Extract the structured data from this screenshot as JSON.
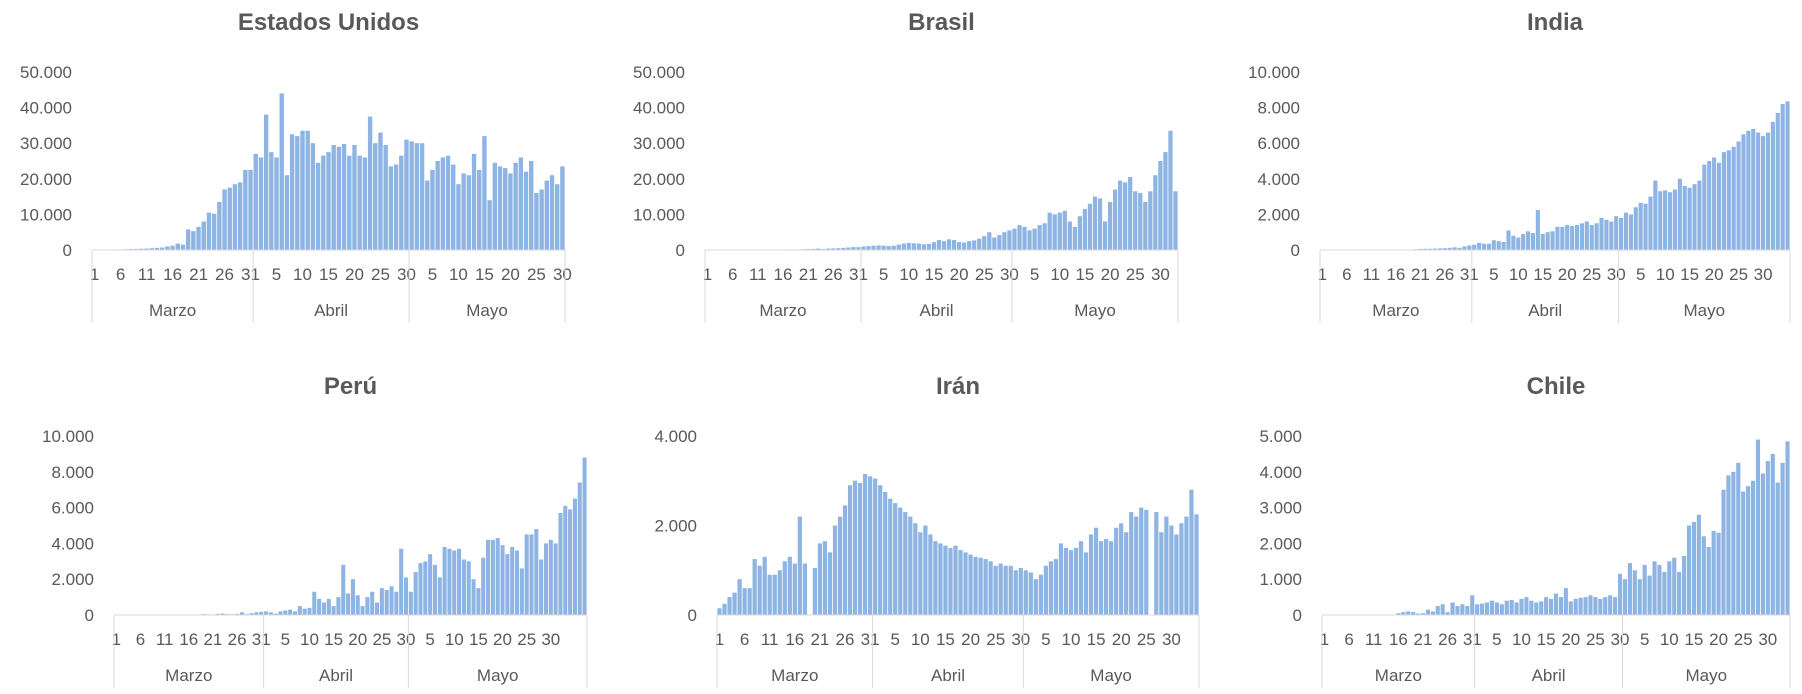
{
  "chart_data": [
    {
      "type": "bar",
      "title": "Estados Unidos",
      "ylim": [
        0,
        50000
      ],
      "y_ticks": [
        "0",
        "10.000",
        "20.000",
        "30.000",
        "40.000",
        "50.000"
      ],
      "x_tick_labels": [
        "1",
        "6",
        "11",
        "16",
        "21",
        "26",
        "31",
        "5",
        "10",
        "15",
        "20",
        "25",
        "30",
        "5",
        "10",
        "15",
        "20",
        "25",
        "30"
      ],
      "months": [
        "Marzo",
        "Abril",
        "Mayo"
      ],
      "month_days": [
        31,
        30,
        31
      ],
      "values": [
        20,
        40,
        60,
        80,
        100,
        150,
        200,
        250,
        300,
        350,
        400,
        500,
        600,
        700,
        1000,
        1200,
        1800,
        1500,
        5800,
        5300,
        6500,
        8000,
        10500,
        10200,
        13500,
        17000,
        17500,
        18500,
        19000,
        22500,
        22500,
        27000,
        26000,
        38000,
        27500,
        26000,
        44000,
        21000,
        32500,
        32000,
        33500,
        33500,
        30000,
        24500,
        26500,
        27500,
        29500,
        29000,
        29800,
        26500,
        29500,
        26500,
        26000,
        37500,
        30000,
        33000,
        29500,
        23500,
        24000,
        26500,
        31000,
        30500,
        30000,
        30000,
        19500,
        22500,
        25000,
        26000,
        26500,
        24000,
        18500,
        21500,
        21000,
        27000,
        22500,
        32000,
        14000,
        24500,
        23500,
        23000,
        21500,
        24500,
        26000,
        22000,
        25000,
        16000,
        17000,
        19500,
        21000,
        18500,
        23500
      ]
    },
    {
      "type": "bar",
      "title": "Brasil",
      "ylim": [
        0,
        50000
      ],
      "y_ticks": [
        "0",
        "10.000",
        "20.000",
        "30.000",
        "40.000",
        "50.000"
      ],
      "x_tick_labels": [
        "1",
        "6",
        "11",
        "16",
        "21",
        "26",
        "31",
        "5",
        "10",
        "15",
        "20",
        "25",
        "30",
        "5",
        "10",
        "15",
        "20",
        "25",
        "30"
      ],
      "months": [
        "Marzo",
        "Abril",
        "Mayo"
      ],
      "month_days": [
        31,
        30,
        31
      ],
      "values": [
        0,
        0,
        0,
        0,
        0,
        0,
        0,
        0,
        0,
        0,
        0,
        0,
        0,
        0,
        0,
        0,
        100,
        150,
        150,
        200,
        250,
        300,
        400,
        300,
        400,
        450,
        500,
        600,
        700,
        800,
        800,
        1000,
        1100,
        1200,
        1300,
        1200,
        1100,
        1200,
        1500,
        1800,
        2000,
        1900,
        1800,
        1600,
        1700,
        2200,
        2800,
        2500,
        3000,
        2800,
        2200,
        2100,
        2500,
        2700,
        3200,
        3900,
        5000,
        3500,
        4200,
        5000,
        5500,
        6000,
        7000,
        6500,
        5500,
        6000,
        7000,
        7500,
        10500,
        10000,
        10500,
        11000,
        8000,
        6500,
        9500,
        11500,
        13000,
        15000,
        14500,
        8000,
        13500,
        17000,
        19500,
        19000,
        20500,
        16500,
        16000,
        13500,
        16500,
        21000,
        25000,
        27500,
        33500,
        16500
      ]
    },
    {
      "type": "bar",
      "title": "India",
      "ylim": [
        0,
        10000
      ],
      "y_ticks": [
        "0",
        "2.000",
        "4.000",
        "6.000",
        "8.000",
        "10.000"
      ],
      "x_tick_labels": [
        "1",
        "6",
        "11",
        "16",
        "21",
        "26",
        "31",
        "5",
        "10",
        "15",
        "20",
        "25",
        "30",
        "5",
        "10",
        "15",
        "20",
        "25",
        "30"
      ],
      "months": [
        "Marzo",
        "Abril",
        "Mayo"
      ],
      "month_days": [
        31,
        30,
        31
      ],
      "values": [
        0,
        0,
        0,
        0,
        0,
        0,
        0,
        0,
        0,
        0,
        0,
        0,
        0,
        0,
        0,
        0,
        0,
        0,
        20,
        40,
        60,
        70,
        70,
        80,
        90,
        100,
        120,
        150,
        120,
        200,
        250,
        300,
        400,
        350,
        350,
        550,
        500,
        450,
        1100,
        800,
        700,
        900,
        1050,
        950,
        2250,
        900,
        1000,
        1050,
        1300,
        1300,
        1400,
        1350,
        1400,
        1500,
        1600,
        1400,
        1500,
        1800,
        1700,
        1600,
        1900,
        1800,
        2100,
        2000,
        2400,
        2650,
        2600,
        3000,
        3900,
        3300,
        3350,
        3250,
        3400,
        4000,
        3600,
        3500,
        3700,
        3900,
        4800,
        5000,
        5200,
        4900,
        5500,
        5600,
        5800,
        6100,
        6500,
        6700,
        6800,
        6600,
        6400,
        6600,
        7200,
        7700,
        8200,
        8350
      ]
    },
    {
      "type": "bar",
      "title": "Perú",
      "ylim": [
        0,
        10000
      ],
      "y_ticks": [
        "0",
        "2.000",
        "4.000",
        "6.000",
        "8.000",
        "10.000"
      ],
      "x_tick_labels": [
        "1",
        "6",
        "11",
        "16",
        "21",
        "26",
        "31",
        "5",
        "10",
        "15",
        "20",
        "25",
        "30",
        "5",
        "10",
        "15",
        "20",
        "25",
        "30"
      ],
      "months": [
        "Marzo",
        "Abril",
        "Mayo"
      ],
      "month_days": [
        31,
        30,
        31
      ],
      "values": [
        0,
        0,
        0,
        0,
        0,
        0,
        0,
        0,
        0,
        0,
        0,
        0,
        0,
        0,
        0,
        0,
        0,
        30,
        50,
        40,
        30,
        60,
        80,
        50,
        40,
        60,
        150,
        50,
        100,
        150,
        180,
        200,
        150,
        80,
        200,
        250,
        300,
        200,
        500,
        350,
        400,
        1300,
        900,
        700,
        900,
        500,
        1000,
        2800,
        1200,
        2000,
        1100,
        500,
        1000,
        1300,
        700,
        1500,
        1400,
        1600,
        1300,
        3700,
        2100,
        1300,
        2400,
        2900,
        3000,
        3400,
        2800,
        2100,
        3800,
        3700,
        3600,
        3700,
        3100,
        3000,
        2000,
        1500,
        3200,
        4200,
        4200,
        4300,
        3900,
        3400,
        3800,
        3600,
        2600,
        4500,
        4500,
        4800,
        3100,
        4000,
        4200,
        4000,
        5700,
        6100,
        5900,
        6500,
        7400,
        8800
      ]
    },
    {
      "type": "bar",
      "title": "Irán",
      "ylim": [
        0,
        4000
      ],
      "y_ticks": [
        "0",
        "2.000",
        "4.000"
      ],
      "x_tick_labels": [
        "1",
        "6",
        "11",
        "16",
        "21",
        "26",
        "31",
        "5",
        "10",
        "15",
        "20",
        "25",
        "30",
        "5",
        "10",
        "15",
        "20",
        "25",
        "30"
      ],
      "months": [
        "Marzo",
        "Abril",
        "Mayo"
      ],
      "month_days": [
        31,
        30,
        31
      ],
      "values": [
        150,
        250,
        400,
        500,
        800,
        600,
        600,
        1250,
        1100,
        1300,
        900,
        900,
        1000,
        1200,
        1300,
        1150,
        2200,
        1150,
        0,
        1050,
        1600,
        1650,
        1400,
        2000,
        2200,
        2450,
        2900,
        3000,
        2950,
        3150,
        3100,
        3050,
        2900,
        2750,
        2600,
        2500,
        2400,
        2300,
        2200,
        2050,
        1850,
        2000,
        1800,
        1650,
        1600,
        1550,
        1500,
        1550,
        1450,
        1400,
        1350,
        1300,
        1280,
        1250,
        1200,
        1100,
        1150,
        1100,
        1100,
        1000,
        1050,
        1000,
        950,
        800,
        900,
        1100,
        1200,
        1250,
        1600,
        1500,
        1450,
        1500,
        1650,
        1400,
        1800,
        1950,
        1650,
        1700,
        1650,
        1950,
        2050,
        1850,
        2300,
        2200,
        2400,
        2350,
        0,
        2300,
        1850,
        2200,
        2000,
        1800,
        2050,
        2200,
        2800,
        2250
      ]
    },
    {
      "type": "bar",
      "title": "Chile",
      "ylim": [
        0,
        5000
      ],
      "y_ticks": [
        "0",
        "1.000",
        "2.000",
        "3.000",
        "4.000",
        "5.000"
      ],
      "x_tick_labels": [
        "1",
        "6",
        "11",
        "16",
        "21",
        "26",
        "31",
        "5",
        "10",
        "15",
        "20",
        "25",
        "30",
        "5",
        "10",
        "15",
        "20",
        "25",
        "30"
      ],
      "months": [
        "Marzo",
        "Abril",
        "Mayo"
      ],
      "month_days": [
        31,
        30,
        31
      ],
      "values": [
        0,
        0,
        0,
        0,
        0,
        0,
        0,
        0,
        0,
        0,
        0,
        0,
        0,
        0,
        0,
        50,
        80,
        100,
        80,
        40,
        50,
        150,
        100,
        250,
        300,
        80,
        350,
        250,
        300,
        250,
        550,
        300,
        320,
        350,
        400,
        350,
        300,
        400,
        420,
        350,
        450,
        500,
        400,
        350,
        380,
        500,
        450,
        600,
        500,
        750,
        380,
        450,
        480,
        500,
        550,
        500,
        450,
        500,
        550,
        500,
        1150,
        1000,
        1450,
        1250,
        1000,
        1400,
        1100,
        1500,
        1400,
        1200,
        1500,
        1600,
        1200,
        1650,
        2500,
        2600,
        2800,
        2200,
        1900,
        2350,
        2300,
        3500,
        3900,
        4000,
        4250,
        3450,
        3600,
        3750,
        4900,
        3950,
        4300,
        4500,
        3700,
        4250,
        4850
      ]
    }
  ]
}
